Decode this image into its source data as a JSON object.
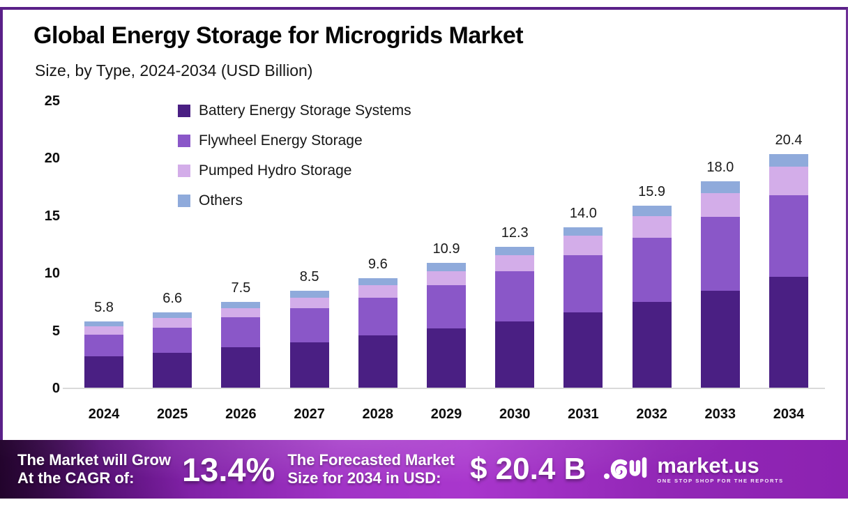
{
  "header": {
    "title": "Global Energy Storage for Microgrids Market",
    "subtitle": "Size, by Type, 2024-2034 (USD Billion)"
  },
  "chart_data": {
    "type": "bar",
    "stacked": true,
    "title": "Global Energy Storage for Microgrids Market Size, by Type, 2024-2034 (USD Billion)",
    "categories": [
      "2024",
      "2025",
      "2026",
      "2027",
      "2028",
      "2029",
      "2030",
      "2031",
      "2032",
      "2033",
      "2034"
    ],
    "series": [
      {
        "name": "Battery Energy Storage Systems",
        "color": "#4A1F83",
        "values": [
          2.8,
          3.1,
          3.6,
          4.0,
          4.6,
          5.2,
          5.8,
          6.6,
          7.5,
          8.5,
          9.7
        ]
      },
      {
        "name": "Flywheel Energy Storage",
        "color": "#8A57C8",
        "values": [
          1.9,
          2.2,
          2.6,
          3.0,
          3.3,
          3.8,
          4.4,
          5.0,
          5.6,
          6.4,
          7.1
        ]
      },
      {
        "name": "Pumped Hydro Storage",
        "color": "#D3ADE9",
        "values": [
          0.7,
          0.8,
          0.8,
          0.9,
          1.1,
          1.2,
          1.4,
          1.7,
          1.9,
          2.1,
          2.5
        ]
      },
      {
        "name": "Others",
        "color": "#8FAADB",
        "values": [
          0.4,
          0.5,
          0.5,
          0.6,
          0.6,
          0.7,
          0.7,
          0.7,
          0.9,
          1.0,
          1.1
        ]
      }
    ],
    "totals": [
      "5.8",
      "6.6",
      "7.5",
      "8.5",
      "9.6",
      "10.9",
      "12.3",
      "14.0",
      "15.9",
      "18.0",
      "20.4"
    ],
    "ylim": [
      0,
      25
    ],
    "yticks": [
      0,
      5,
      10,
      15,
      20,
      25
    ],
    "grid": false,
    "legend_position": "upper-left-inside",
    "xlabel": "",
    "ylabel": ""
  },
  "banner": {
    "cagr_label_line1": "The Market will Grow",
    "cagr_label_line2": "At the CAGR of:",
    "cagr_value": "13.4%",
    "forecast_label_line1": "The Forecasted Market",
    "forecast_label_line2": "Size for 2034 in USD:",
    "forecast_value": "$ 20.4 B",
    "brand": {
      "name": "market.us",
      "tagline": "ONE STOP SHOP FOR THE REPORTS"
    }
  }
}
